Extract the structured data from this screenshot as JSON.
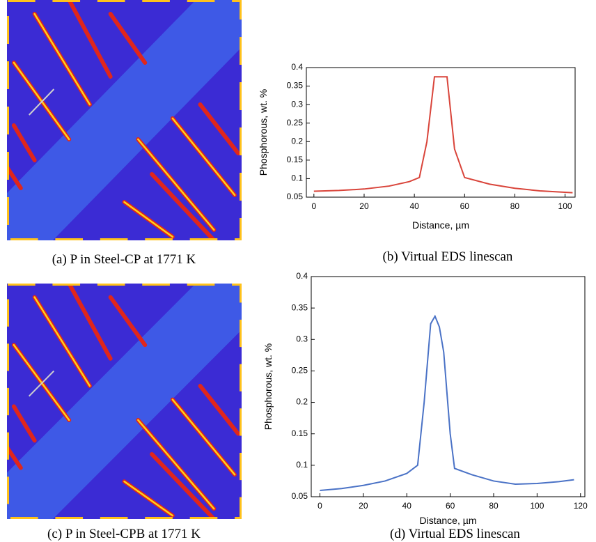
{
  "chart_data": [
    {
      "type": "line",
      "ylabel": "Phosphorous, wt. %",
      "xlabel": "Distance, µm",
      "caption": "(b) Virtual EDS linescan",
      "x": [
        0,
        10,
        20,
        30,
        38,
        42,
        45,
        48,
        53,
        56,
        60,
        70,
        80,
        90,
        103
      ],
      "series": [
        {
          "color": "#d9443a",
          "values": [
            0.066,
            0.068,
            0.072,
            0.08,
            0.092,
            0.103,
            0.2,
            0.375,
            0.375,
            0.18,
            0.103,
            0.085,
            0.074,
            0.067,
            0.062
          ]
        }
      ],
      "xlim": [
        -3,
        104
      ],
      "xticks": [
        0,
        20,
        40,
        60,
        80,
        100
      ],
      "ylim": [
        0.05,
        0.4
      ],
      "yticks": [
        0.05,
        0.1,
        0.15,
        0.2,
        0.25,
        0.3,
        0.35,
        0.4
      ]
    },
    {
      "type": "line",
      "ylabel": "Phosphorous, wt. %",
      "xlabel": "Distance, µm",
      "caption": "(d) Virtual EDS linescan",
      "x": [
        0,
        10,
        20,
        30,
        40,
        45,
        48,
        51,
        53,
        55,
        57,
        60,
        62,
        70,
        80,
        90,
        100,
        110,
        117
      ],
      "series": [
        {
          "color": "#4a72c6",
          "values": [
            0.06,
            0.063,
            0.068,
            0.075,
            0.087,
            0.1,
            0.2,
            0.325,
            0.337,
            0.32,
            0.28,
            0.15,
            0.095,
            0.085,
            0.075,
            0.07,
            0.071,
            0.074,
            0.077
          ]
        }
      ],
      "xlim": [
        -4,
        122
      ],
      "xticks": [
        0,
        20,
        40,
        60,
        80,
        100,
        120
      ],
      "ylim": [
        0.05,
        0.4
      ],
      "yticks": [
        0.05,
        0.1,
        0.15,
        0.2,
        0.25,
        0.3,
        0.35,
        0.4
      ]
    }
  ],
  "images": [
    {
      "caption": "(a) P in Steel-CP at 1771 K"
    },
    {
      "caption": "(c) P in Steel-CPB at 1771 K"
    }
  ]
}
